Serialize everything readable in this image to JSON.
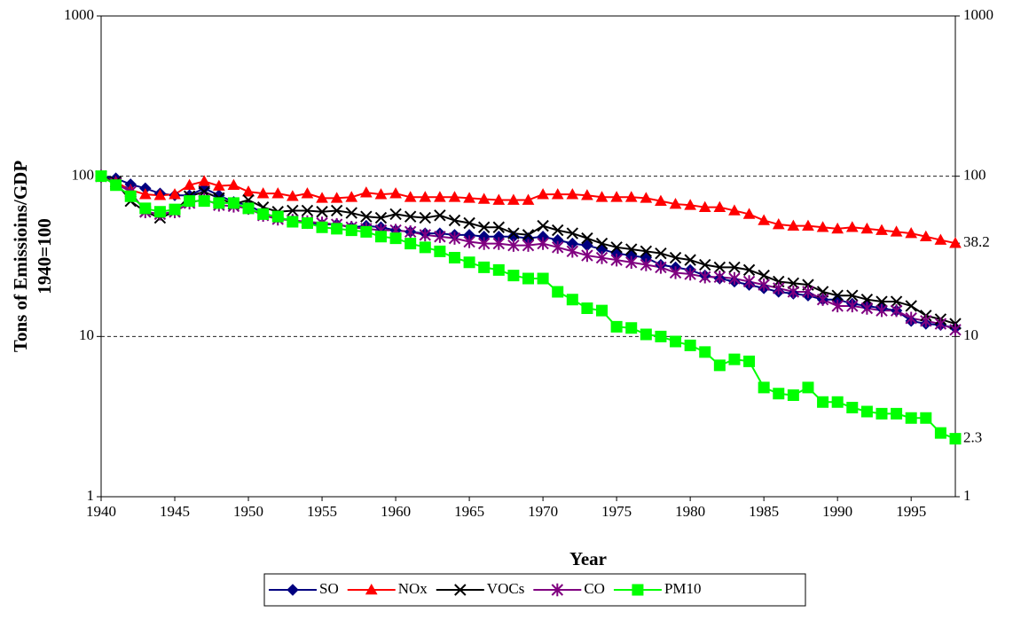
{
  "chart_data": {
    "type": "line",
    "ylabel_lines": [
      "Tons of Emissioins/GDP",
      "1940=100"
    ],
    "xlabel": "Year",
    "x": [
      1940,
      1941,
      1942,
      1943,
      1944,
      1945,
      1946,
      1947,
      1948,
      1949,
      1950,
      1951,
      1952,
      1953,
      1954,
      1955,
      1956,
      1957,
      1958,
      1959,
      1960,
      1961,
      1962,
      1963,
      1964,
      1965,
      1966,
      1967,
      1968,
      1969,
      1970,
      1971,
      1972,
      1973,
      1974,
      1975,
      1976,
      1977,
      1978,
      1979,
      1980,
      1981,
      1982,
      1983,
      1984,
      1985,
      1986,
      1987,
      1988,
      1989,
      1990,
      1991,
      1992,
      1993,
      1994,
      1995,
      1996,
      1997,
      1998
    ],
    "xlim": [
      1940,
      1998
    ],
    "xticks": [
      1940,
      1945,
      1950,
      1955,
      1960,
      1965,
      1970,
      1975,
      1980,
      1985,
      1990,
      1995
    ],
    "log_scale": true,
    "ylim": [
      1,
      1000
    ],
    "yticks": [
      1,
      10,
      100,
      1000
    ],
    "y2lim": [
      1,
      1000
    ],
    "y2ticks": [
      1,
      2.3,
      10,
      38.2,
      100,
      1000
    ],
    "grid": true,
    "legend": "bottom",
    "series": [
      {
        "name": "SO",
        "color": "#000080",
        "marker": "diamond",
        "values": [
          100,
          97,
          89,
          84,
          78,
          76,
          76,
          84,
          76,
          69,
          66,
          59,
          55,
          53,
          51,
          50,
          50,
          48,
          49,
          48,
          46,
          45,
          44,
          44,
          43,
          43,
          42,
          42,
          42,
          41,
          42,
          40,
          38,
          37,
          35,
          33,
          32,
          31,
          28,
          27,
          26,
          24,
          23,
          22,
          21,
          20,
          19,
          18.5,
          18,
          17,
          17,
          16,
          15.5,
          15,
          14.5,
          12.5,
          12,
          11.8,
          11.3
        ]
      },
      {
        "name": "NOx",
        "color": "#ff0000",
        "marker": "triangle",
        "values": [
          100,
          92,
          82,
          77,
          76,
          77,
          88,
          93,
          87,
          88,
          80,
          78,
          78,
          75,
          78,
          73,
          73,
          74,
          79,
          77,
          78,
          74,
          74,
          74,
          74,
          73,
          72,
          71,
          71,
          71,
          77,
          77,
          77,
          76,
          74,
          74,
          74,
          73,
          70,
          67,
          66,
          64,
          64,
          61,
          58,
          53,
          50,
          49,
          49,
          48,
          47,
          48,
          47,
          46,
          45,
          44,
          42,
          40,
          38.2
        ]
      },
      {
        "name": "VOCs",
        "color": "#000000",
        "marker": "x",
        "values": [
          100,
          92,
          70,
          60,
          55,
          60,
          75,
          80,
          73,
          67,
          71,
          64,
          60,
          61,
          61,
          60,
          61,
          59,
          56,
          55,
          58,
          56,
          55,
          57,
          53,
          51,
          48,
          48,
          44,
          43,
          49,
          46,
          44,
          41,
          38,
          36,
          35,
          34,
          33,
          31,
          30,
          28,
          27,
          27,
          26,
          24,
          22,
          21.5,
          21,
          19,
          18,
          18,
          17,
          16.5,
          16.5,
          15.5,
          13.5,
          12.8,
          12
        ]
      },
      {
        "name": "CO",
        "color": "#800080",
        "marker": "asterisk",
        "values": [
          100,
          90,
          80,
          60,
          58,
          60,
          68,
          72,
          66,
          65,
          63,
          57,
          54,
          53,
          52,
          51,
          50,
          48,
          47,
          46,
          46,
          45,
          43,
          42,
          41,
          39,
          38,
          38,
          37,
          37,
          38,
          36,
          34,
          32,
          31,
          30,
          29,
          28,
          27,
          25,
          24.5,
          23.5,
          23.5,
          23,
          22,
          21,
          20,
          19,
          19,
          17,
          15.5,
          15.5,
          15,
          14.5,
          14.5,
          13,
          12.5,
          12,
          11
        ]
      },
      {
        "name": "PM10",
        "color": "#00ff00",
        "marker": "square",
        "values": [
          100,
          88,
          75,
          63,
          60,
          62,
          70,
          70,
          68,
          68,
          63,
          58,
          56,
          52,
          51,
          48,
          47,
          46,
          45,
          42,
          41,
          38,
          36,
          34,
          31,
          29,
          27,
          26,
          24,
          23,
          23,
          19,
          17,
          15,
          14.5,
          11.5,
          11.3,
          10.3,
          10,
          9.3,
          8.8,
          8,
          6.6,
          7.2,
          7,
          4.8,
          4.4,
          4.3,
          4.8,
          3.9,
          3.9,
          3.6,
          3.4,
          3.3,
          3.3,
          3.1,
          3.1,
          2.5,
          2.3
        ]
      }
    ]
  }
}
